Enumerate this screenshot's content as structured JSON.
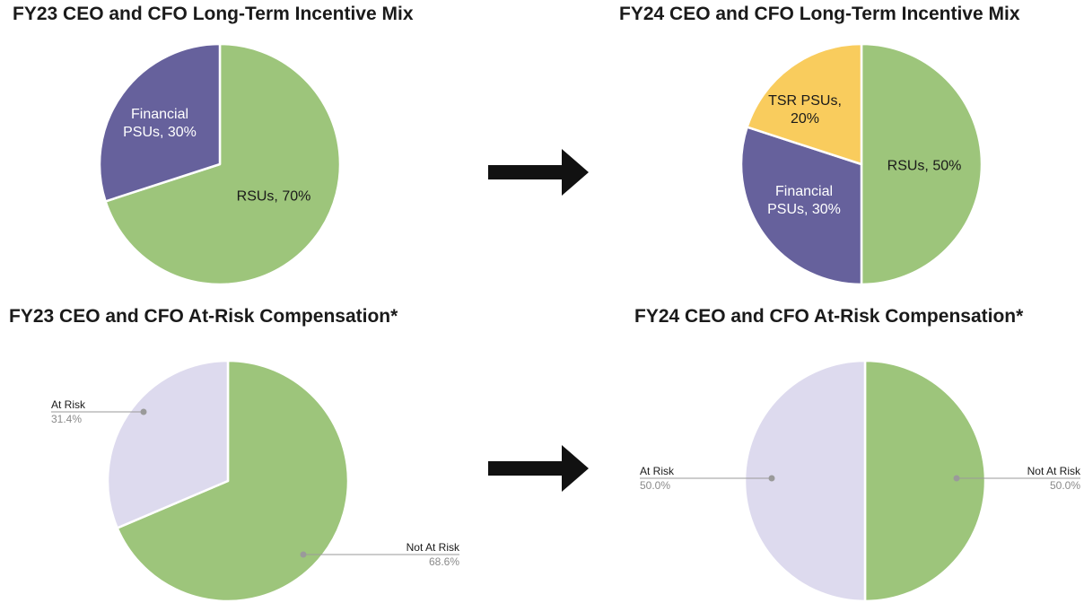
{
  "chart_data": [
    {
      "type": "pie",
      "title": "FY23 CEO and CFO Long-Term Incentive Mix",
      "slices": [
        {
          "name": "RSUs",
          "value": 70,
          "label_line1": "RSUs, 70%",
          "label_line2": "",
          "color": "#9dc57b",
          "label_color": "#1a1a1a"
        },
        {
          "name": "Financial PSUs",
          "value": 30,
          "label_line1": "Financial",
          "label_line2": "PSUs, 30%",
          "color": "#66619c",
          "label_color": "#ffffff"
        }
      ]
    },
    {
      "type": "pie",
      "title": "FY24 CEO and CFO Long-Term Incentive Mix",
      "slices": [
        {
          "name": "RSUs",
          "value": 50,
          "label_line1": "RSUs, 50%",
          "label_line2": "",
          "color": "#9dc57b",
          "label_color": "#1a1a1a"
        },
        {
          "name": "Financial PSUs",
          "value": 30,
          "label_line1": "Financial",
          "label_line2": "PSUs, 30%",
          "color": "#66619c",
          "label_color": "#ffffff"
        },
        {
          "name": "TSR PSUs",
          "value": 20,
          "label_line1": "TSR PSUs,",
          "label_line2": "20%",
          "color": "#f9cc5d",
          "label_color": "#1a1a1a"
        }
      ]
    },
    {
      "type": "pie",
      "title": "FY23 CEO and CFO At-Risk Compensation*",
      "slices": [
        {
          "name": "Not At Risk",
          "value": 68.6,
          "label_line1": "Not At Risk",
          "label_line2": "68.6%",
          "color": "#9dc57b"
        },
        {
          "name": "At Risk",
          "value": 31.4,
          "label_line1": "At Risk",
          "label_line2": "31.4%",
          "color": "#dddaee"
        }
      ]
    },
    {
      "type": "pie",
      "title": "FY24 CEO and CFO At-Risk Compensation*",
      "slices": [
        {
          "name": "Not At Risk",
          "value": 50.0,
          "label_line1": "Not At Risk",
          "label_line2": "50.0%",
          "color": "#9dc57b"
        },
        {
          "name": "At Risk",
          "value": 50.0,
          "label_line1": "At Risk",
          "label_line2": "50.0%",
          "color": "#dddaee"
        }
      ]
    }
  ],
  "colors": {
    "arrow": "#111111",
    "leader": "#9a9a9a",
    "value_text": "#8a8a8a",
    "name_text": "#1a1a1a"
  }
}
